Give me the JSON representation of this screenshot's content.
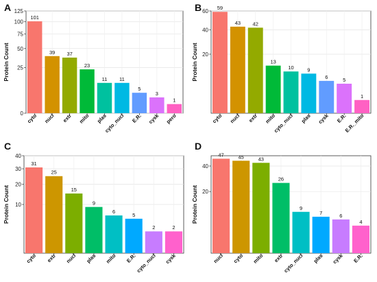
{
  "chart_data": [
    {
      "type": "bar",
      "panel": "A",
      "ylabel": "Protein Count",
      "yscale": "sqrt",
      "ylim": [
        0,
        125
      ],
      "yticks": [
        "0",
        "25",
        "50",
        "75",
        "100",
        "125"
      ],
      "grid": true,
      "legend": "none",
      "categories": [
        "cyto",
        "nucl",
        "extr",
        "mito",
        "plas",
        "cyto_nucl",
        "E.R.",
        "cysk",
        "pero"
      ],
      "values": [
        101,
        39,
        37,
        23,
        11,
        11,
        5,
        3,
        1
      ],
      "colors": [
        "#F8766D",
        "#D39200",
        "#93AA00",
        "#00BA38",
        "#00C19F",
        "#00B9E3",
        "#619CFF",
        "#DB72FB",
        "#FF61C3"
      ]
    },
    {
      "type": "bar",
      "panel": "B",
      "ylabel": "Protein Count",
      "yscale": "sqrt",
      "ylim": [
        0,
        60
      ],
      "yticks": [
        "20",
        "40",
        "60"
      ],
      "grid": true,
      "legend": "none",
      "categories": [
        "cyto",
        "nucl",
        "extr",
        "mito",
        "cyto_nucl",
        "plas",
        "cysk",
        "E.R.",
        "E.R._mito"
      ],
      "values": [
        59,
        43,
        42,
        13,
        10,
        9,
        6,
        5,
        1
      ],
      "colors": [
        "#F8766D",
        "#D39200",
        "#93AA00",
        "#00BA38",
        "#00C19F",
        "#00B9E3",
        "#619CFF",
        "#DB72FB",
        "#FF61C3"
      ]
    },
    {
      "type": "bar",
      "panel": "C",
      "ylabel": "Protein Count",
      "yscale": "sqrt",
      "ylim": [
        0,
        40
      ],
      "yticks": [
        "10",
        "20",
        "30",
        "40"
      ],
      "grid": true,
      "legend": "none",
      "categories": [
        "cyto",
        "extr",
        "nucl",
        "plas",
        "mito",
        "E.R.",
        "cyto_nucl",
        "cysk"
      ],
      "values": [
        31,
        25,
        15,
        9,
        6,
        5,
        2,
        2
      ],
      "colors": [
        "#F8766D",
        "#CD9600",
        "#7CAE00",
        "#00BE67",
        "#00BFC4",
        "#00A9FF",
        "#C77CFF",
        "#FF61CC"
      ]
    },
    {
      "type": "bar",
      "panel": "D",
      "ylabel": "Protein Count",
      "yscale": "sqrt",
      "ylim": [
        0,
        50
      ],
      "yticks": [
        "20",
        "40"
      ],
      "grid": true,
      "legend": "none",
      "categories": [
        "nucl",
        "cyto",
        "mito",
        "extr",
        "cyto_nucl",
        "plas",
        "cysk",
        "E.R."
      ],
      "values": [
        47,
        45,
        43,
        26,
        9,
        7,
        6,
        4
      ],
      "colors": [
        "#F8766D",
        "#CD9600",
        "#7CAE00",
        "#00BE67",
        "#00BFC4",
        "#00A9FF",
        "#C77CFF",
        "#FF61CC"
      ]
    }
  ]
}
